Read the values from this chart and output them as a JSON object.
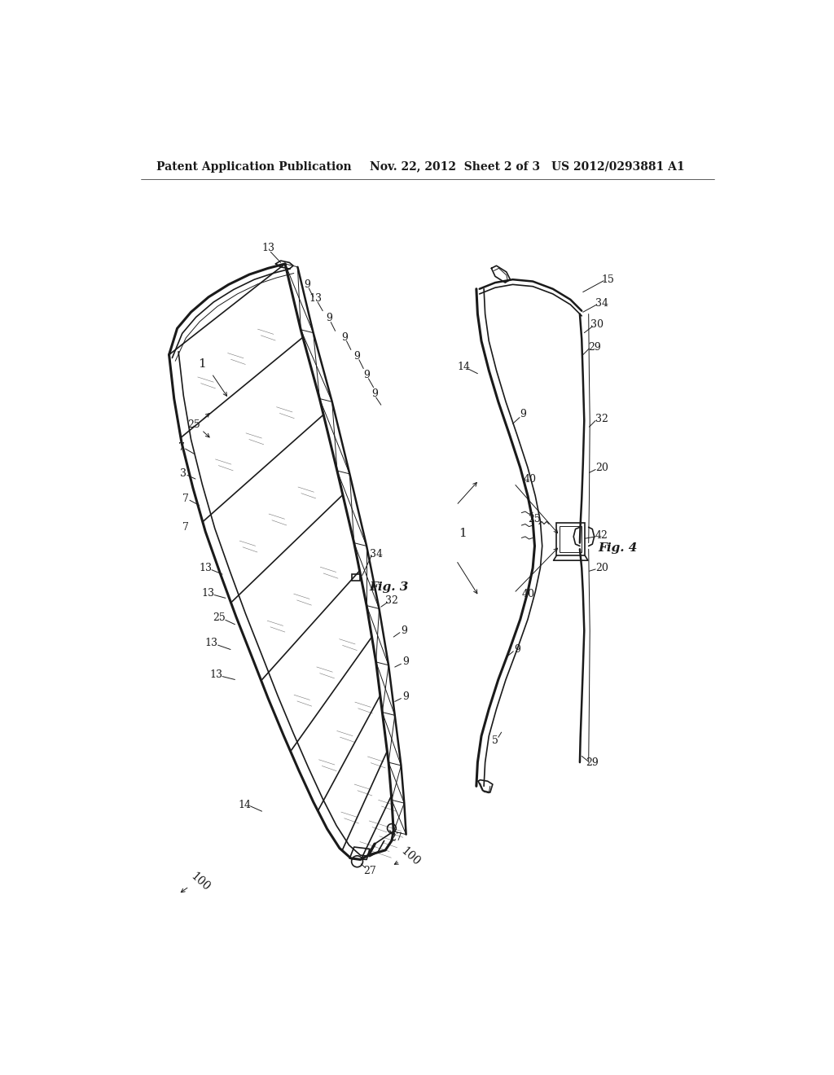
{
  "bg_color": "#ffffff",
  "line_color": "#1a1a1a",
  "header_text_left": "Patent Application Publication",
  "header_text_mid": "Nov. 22, 2012  Sheet 2 of 3",
  "header_text_right": "US 2012/0293881 A1",
  "fig3_label": "Fig. 3",
  "fig4_label": "Fig. 4",
  "fig_width": 10.24,
  "fig_height": 13.2,
  "lw_thin": 0.7,
  "lw_med": 1.2,
  "lw_thick": 1.8,
  "lw_ultra": 2.2
}
